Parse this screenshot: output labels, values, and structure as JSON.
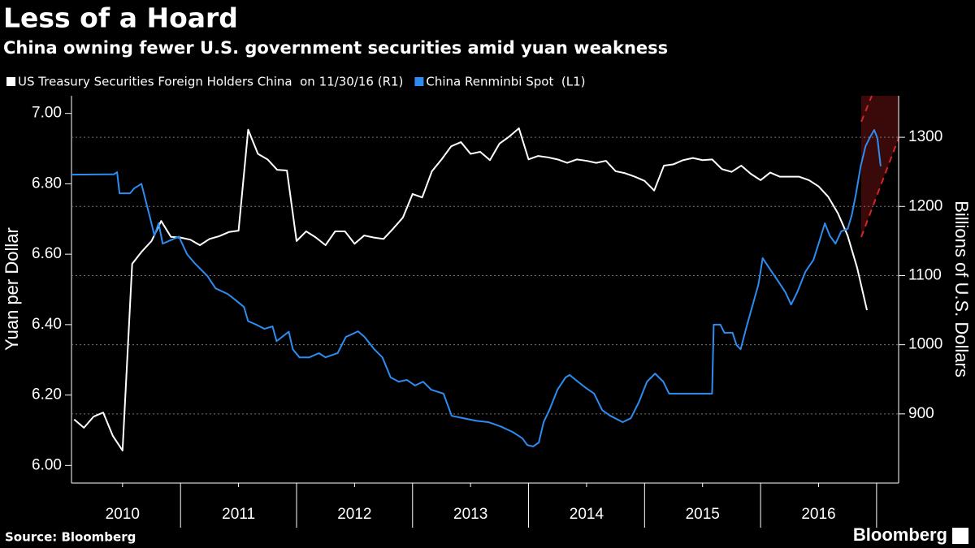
{
  "chart_data": {
    "type": "line",
    "title": "Less of a Hoard",
    "subtitle": "China owning fewer U.S. government securities amid yuan weakness",
    "ylabel": "Yuan per Dollar",
    "y2label": "Billions of U.S. Dollars",
    "source": "Source: Bloomberg",
    "brand": "Bloomberg",
    "xlim": [
      2010.06,
      2017.19
    ],
    "xticks": [
      {
        "value": 2010.5,
        "label": "2010"
      },
      {
        "value": 2011.5,
        "label": "2011"
      },
      {
        "value": 2012.5,
        "label": "2012"
      },
      {
        "value": 2013.5,
        "label": "2013"
      },
      {
        "value": 2014.5,
        "label": "2014"
      },
      {
        "value": 2015.5,
        "label": "2015"
      },
      {
        "value": 2016.5,
        "label": "2016"
      }
    ],
    "x_dividers": [
      2011,
      2012,
      2013,
      2014,
      2015,
      2016,
      2017
    ],
    "ylim": [
      5.95,
      7.05
    ],
    "yticks": [
      {
        "value": 6.0,
        "label": "6.00"
      },
      {
        "value": 6.2,
        "label": "6.20"
      },
      {
        "value": 6.4,
        "label": "6.40"
      },
      {
        "value": 6.6,
        "label": "6.60"
      },
      {
        "value": 6.8,
        "label": "6.80"
      },
      {
        "value": 7.0,
        "label": "7.00"
      }
    ],
    "y2lim": [
      800,
      1360
    ],
    "y2ticks": [
      900,
      1000,
      1100,
      1200,
      1300
    ],
    "grid": true,
    "series": [
      {
        "name": "US Treasury Securities Foreign Holders China  on 11/30/16 (R1)",
        "color": "#ffffff",
        "axis": "y2",
        "x": [
          2010.083,
          2010.167,
          2010.25,
          2010.333,
          2010.417,
          2010.5,
          2010.583,
          2010.667,
          2010.75,
          2010.833,
          2010.917,
          2011,
          2011.083,
          2011.167,
          2011.25,
          2011.333,
          2011.417,
          2011.5,
          2011.583,
          2011.667,
          2011.75,
          2011.833,
          2011.917,
          2012,
          2012.083,
          2012.167,
          2012.25,
          2012.333,
          2012.417,
          2012.5,
          2012.583,
          2012.667,
          2012.75,
          2012.833,
          2012.917,
          2013,
          2013.083,
          2013.167,
          2013.25,
          2013.333,
          2013.417,
          2013.5,
          2013.583,
          2013.667,
          2013.75,
          2013.833,
          2013.917,
          2014,
          2014.083,
          2014.167,
          2014.25,
          2014.333,
          2014.417,
          2014.5,
          2014.583,
          2014.667,
          2014.75,
          2014.833,
          2014.917,
          2015,
          2015.083,
          2015.167,
          2015.25,
          2015.333,
          2015.417,
          2015.5,
          2015.583,
          2015.667,
          2015.75,
          2015.833,
          2015.917,
          2016,
          2016.083,
          2016.167,
          2016.25,
          2016.333,
          2016.417,
          2016.5,
          2016.583,
          2016.667,
          2016.75,
          2016.833,
          2016.917
        ],
        "values": [
          892,
          880,
          896,
          902,
          868,
          847,
          1117,
          1135,
          1150,
          1179,
          1156,
          1155,
          1152,
          1144,
          1153,
          1157,
          1163,
          1165,
          1311,
          1276,
          1268,
          1253,
          1252,
          1150,
          1164,
          1155,
          1144,
          1164,
          1164,
          1146,
          1158,
          1155,
          1153,
          1168,
          1184,
          1218,
          1213,
          1251,
          1268,
          1287,
          1293,
          1276,
          1279,
          1267,
          1291,
          1301,
          1313,
          1268,
          1273,
          1271,
          1268,
          1263,
          1268,
          1266,
          1263,
          1266,
          1251,
          1248,
          1243,
          1237,
          1223,
          1259,
          1261,
          1267,
          1270,
          1267,
          1268,
          1254,
          1250,
          1259,
          1247,
          1238,
          1249,
          1243,
          1243,
          1243,
          1238,
          1229,
          1214,
          1190,
          1158,
          1111,
          1050
        ]
      },
      {
        "name": "China Renminbi Spot  (L1)",
        "color": "#2d8cf0",
        "axis": "y",
        "x": [
          2010.06,
          2010.425,
          2010.453,
          2010.474,
          2010.565,
          2010.6,
          2010.663,
          2010.705,
          2010.74,
          2010.775,
          2010.811,
          2010.846,
          2010.916,
          2010.986,
          2011.056,
          2011.126,
          2011.232,
          2011.302,
          2011.407,
          2011.477,
          2011.547,
          2011.582,
          2011.653,
          2011.723,
          2011.793,
          2011.828,
          2011.933,
          2011.968,
          2012.025,
          2012.109,
          2012.193,
          2012.249,
          2012.354,
          2012.425,
          2012.53,
          2012.586,
          2012.67,
          2012.74,
          2012.811,
          2012.881,
          2012.951,
          2013.021,
          2013.091,
          2013.161,
          2013.267,
          2013.337,
          2013.442,
          2013.547,
          2013.653,
          2013.758,
          2013.863,
          2013.947,
          2013.989,
          2014.039,
          2014.088,
          2014.13,
          2014.179,
          2014.249,
          2014.319,
          2014.354,
          2014.425,
          2014.495,
          2014.565,
          2014.635,
          2014.705,
          2014.811,
          2014.881,
          2014.951,
          2015.021,
          2015.091,
          2015.161,
          2015.211,
          2015.302,
          2015.407,
          2015.512,
          2015.582,
          2015.596,
          2015.653,
          2015.688,
          2015.758,
          2015.793,
          2015.828,
          2015.884,
          2015.933,
          2015.982,
          2016.018,
          2016.074,
          2016.144,
          2016.214,
          2016.263,
          2016.316,
          2016.386,
          2016.456,
          2016.505,
          2016.554,
          2016.596,
          2016.646,
          2016.695,
          2016.751,
          2016.786,
          2016.821,
          2016.863,
          2016.905,
          2016.94,
          2016.979,
          2017.007,
          2017.035
        ],
        "values": [
          6.826,
          6.827,
          6.833,
          6.773,
          6.773,
          6.787,
          6.8,
          6.745,
          6.7,
          6.653,
          6.688,
          6.63,
          6.64,
          6.65,
          6.6,
          6.573,
          6.538,
          6.503,
          6.487,
          6.469,
          6.45,
          6.41,
          6.4,
          6.388,
          6.395,
          6.353,
          6.38,
          6.33,
          6.307,
          6.307,
          6.319,
          6.307,
          6.319,
          6.365,
          6.381,
          6.365,
          6.33,
          6.307,
          6.25,
          6.238,
          6.243,
          6.227,
          6.238,
          6.215,
          6.204,
          6.141,
          6.134,
          6.127,
          6.123,
          6.111,
          6.095,
          6.077,
          6.058,
          6.054,
          6.065,
          6.123,
          6.157,
          6.215,
          6.25,
          6.257,
          6.238,
          6.22,
          6.204,
          6.157,
          6.141,
          6.123,
          6.134,
          6.18,
          6.238,
          6.261,
          6.238,
          6.204,
          6.204,
          6.204,
          6.204,
          6.204,
          6.4,
          6.4,
          6.377,
          6.377,
          6.342,
          6.33,
          6.4,
          6.457,
          6.515,
          6.589,
          6.561,
          6.527,
          6.492,
          6.457,
          6.492,
          6.55,
          6.584,
          6.635,
          6.688,
          6.653,
          6.63,
          6.665,
          6.672,
          6.711,
          6.769,
          6.85,
          6.907,
          6.93,
          6.953,
          6.93,
          6.85
        ]
      }
    ]
  }
}
